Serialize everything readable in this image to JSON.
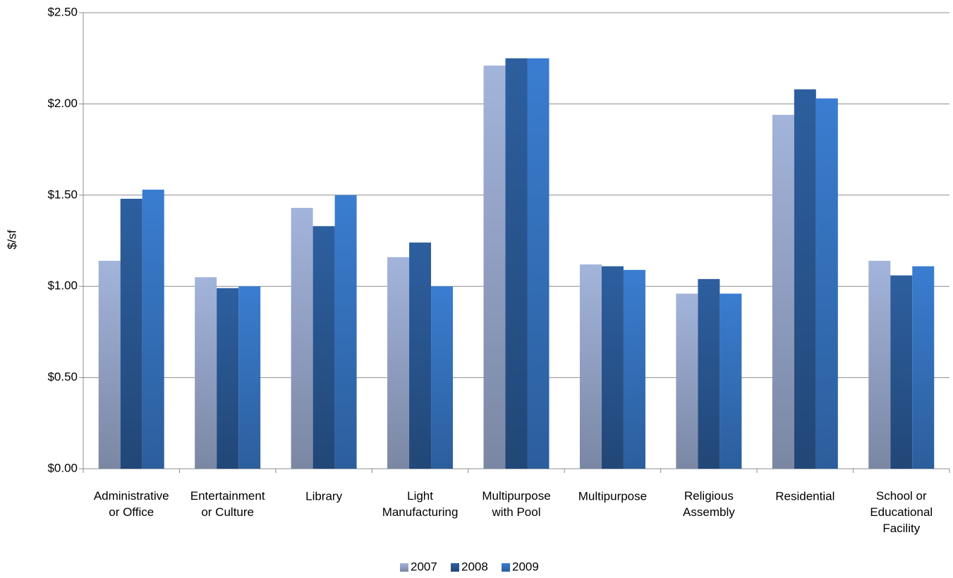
{
  "chart_data": {
    "type": "bar",
    "y_label": "$/sf",
    "categories": [
      "Administrative\nor Office",
      "Entertainment\nor Culture",
      "Library",
      "Light\nManufacturing",
      "Multipurpose\nwith Pool",
      "Multipurpose",
      "Religious\nAssembly",
      "Residential",
      "School or\nEducational\nFacility"
    ],
    "series": [
      {
        "name": "2007",
        "color": "#a3b4db",
        "values": [
          1.14,
          1.05,
          1.43,
          1.16,
          2.21,
          1.12,
          0.96,
          1.94,
          1.14
        ]
      },
      {
        "name": "2008",
        "color": "#2d5f9f",
        "values": [
          1.48,
          0.99,
          1.33,
          1.24,
          2.25,
          1.11,
          1.04,
          2.08,
          1.06
        ]
      },
      {
        "name": "2009",
        "color": "#3a7dd0",
        "values": [
          1.53,
          1.0,
          1.5,
          1.0,
          2.25,
          1.09,
          0.96,
          2.03,
          1.11
        ]
      }
    ],
    "ylim": [
      0,
      2.5
    ],
    "yticks": [
      {
        "value": 0,
        "label": "$0.00"
      },
      {
        "value": 0.5,
        "label": "$0.50"
      },
      {
        "value": 1,
        "label": "$1.00"
      },
      {
        "value": 1.5,
        "label": "$1.50"
      },
      {
        "value": 2,
        "label": "$2.00"
      },
      {
        "value": 2.5,
        "label": "$2.50"
      }
    ],
    "grid": true,
    "legend": "bottom"
  }
}
